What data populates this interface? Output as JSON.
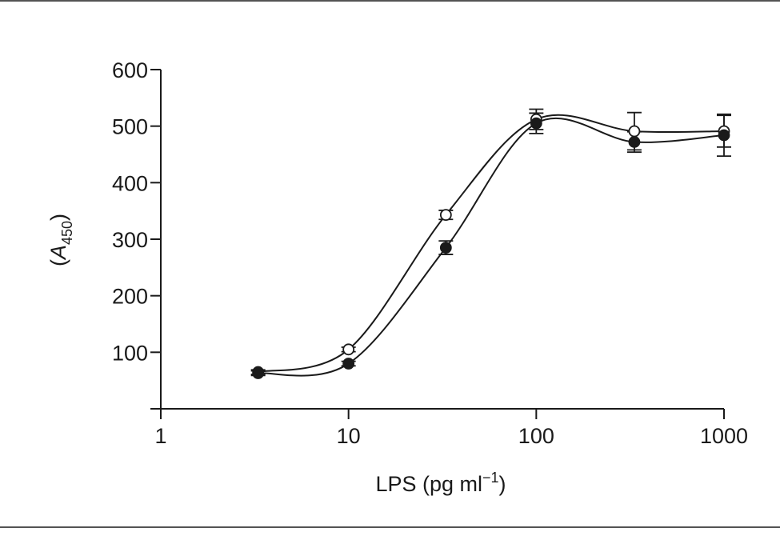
{
  "chart_data": {
    "type": "line",
    "title": "",
    "xlabel": "LPS (pg ml",
    "xlabel_sup": "−1",
    "xlabel_close": ")",
    "ylabel_open": "(",
    "ylabel_italic": "A",
    "ylabel_sub": "450",
    "ylabel_close": ")",
    "x_scale": "log",
    "xlim": [
      1,
      1000
    ],
    "ylim": [
      0,
      600
    ],
    "x_ticks": [
      1,
      10,
      100,
      1000
    ],
    "x_tick_labels": [
      "1",
      "10",
      "100",
      "1000"
    ],
    "y_ticks": [
      100,
      200,
      300,
      400,
      500,
      600
    ],
    "y_tick_labels": [
      "100",
      "200",
      "300",
      "400",
      "500",
      "600"
    ],
    "grid": false,
    "series": [
      {
        "marker": "open-circle",
        "x": [
          3.3,
          10,
          33,
          100,
          333,
          1000
        ],
        "y": [
          65,
          105,
          343,
          512,
          491,
          491
        ],
        "err": [
          4,
          4,
          8,
          18,
          33,
          28
        ]
      },
      {
        "marker": "filled-circle",
        "x": [
          3.3,
          10,
          33,
          100,
          333,
          1000
        ],
        "y": [
          63,
          80,
          285,
          505,
          472,
          484
        ],
        "err": [
          4,
          4,
          12,
          18,
          18,
          37
        ]
      }
    ],
    "colors": {
      "ink": "#1a1a1a",
      "background": "#ffffff"
    }
  }
}
